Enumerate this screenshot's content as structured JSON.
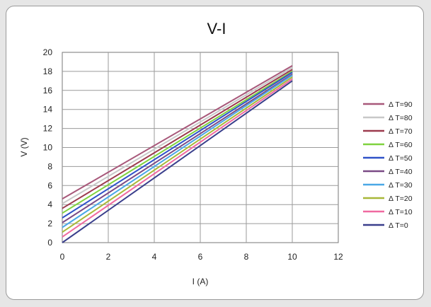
{
  "chart_data": {
    "type": "line",
    "title": "V-I",
    "xlabel": "I (A)",
    "ylabel": "V (V)",
    "xlim": [
      0,
      12
    ],
    "ylim": [
      0,
      20
    ],
    "xticks": [
      0,
      2,
      4,
      6,
      8,
      10,
      12
    ],
    "yticks": [
      0,
      2,
      4,
      6,
      8,
      10,
      12,
      14,
      16,
      18,
      20
    ],
    "grid": true,
    "legend_position": "right",
    "x": [
      0,
      10
    ],
    "series": [
      {
        "name": "Δ T=90",
        "color": "#a8587a",
        "values": [
          4.6,
          18.6
        ]
      },
      {
        "name": "Δ T=80",
        "color": "#c8c8c8",
        "values": [
          4.1,
          18.4
        ]
      },
      {
        "name": "Δ T=70",
        "color": "#9c3b4e",
        "values": [
          3.6,
          18.2
        ]
      },
      {
        "name": "Δ T=60",
        "color": "#7fd23e",
        "values": [
          3.1,
          18.0
        ]
      },
      {
        "name": "Δ T=50",
        "color": "#2f52c8",
        "values": [
          2.6,
          17.9
        ]
      },
      {
        "name": "Δ T=40",
        "color": "#7a4a86",
        "values": [
          2.1,
          17.7
        ]
      },
      {
        "name": "Δ T=30",
        "color": "#4aa8e6",
        "values": [
          1.6,
          17.6
        ]
      },
      {
        "name": "Δ T=20",
        "color": "#a8b838",
        "values": [
          1.1,
          17.4
        ]
      },
      {
        "name": "Δ T=10",
        "color": "#f06aa0",
        "values": [
          0.6,
          17.2
        ]
      },
      {
        "name": "Δ T=0",
        "color": "#3a3f8c",
        "values": [
          0.0,
          17.0
        ]
      }
    ]
  }
}
